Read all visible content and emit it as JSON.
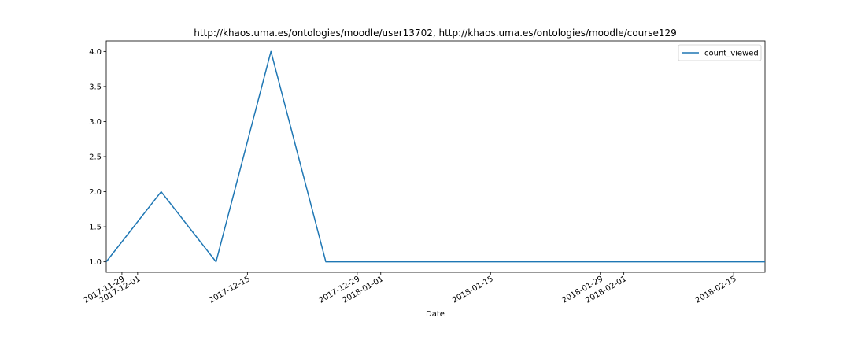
{
  "chart_data": {
    "type": "line",
    "title": "http://khaos.uma.es/ontologies/moodle/user13702, http://khaos.uma.es/ontologies/moodle/course129",
    "xlabel": "Date",
    "ylabel": "",
    "x": [
      "2017-11-27",
      "2017-12-04",
      "2017-12-11",
      "2017-12-18",
      "2017-12-25",
      "2018-01-01",
      "2018-01-08",
      "2018-01-15",
      "2018-01-22",
      "2018-01-29",
      "2018-02-05",
      "2018-02-12",
      "2018-02-19"
    ],
    "series": [
      {
        "name": "count_viewed",
        "values": [
          1,
          2,
          1,
          4,
          1,
          1,
          1,
          1,
          1,
          1,
          1,
          1,
          1
        ],
        "color": "#1f77b4"
      }
    ],
    "xlim": [
      "2017-11-27",
      "2018-02-19"
    ],
    "ylim": [
      0.85,
      4.15
    ],
    "yticks": [
      1.0,
      1.5,
      2.0,
      2.5,
      3.0,
      3.5,
      4.0
    ],
    "ytick_labels": [
      "1.0",
      "1.5",
      "2.0",
      "2.5",
      "3.0",
      "3.5",
      "4.0"
    ],
    "xticks": [
      "2017-11-29",
      "2017-12-01",
      "2017-12-15",
      "2017-12-29",
      "2018-01-01",
      "2018-01-15",
      "2018-01-29",
      "2018-02-01",
      "2018-02-15"
    ],
    "grid": false,
    "legend_position": "upper right"
  }
}
